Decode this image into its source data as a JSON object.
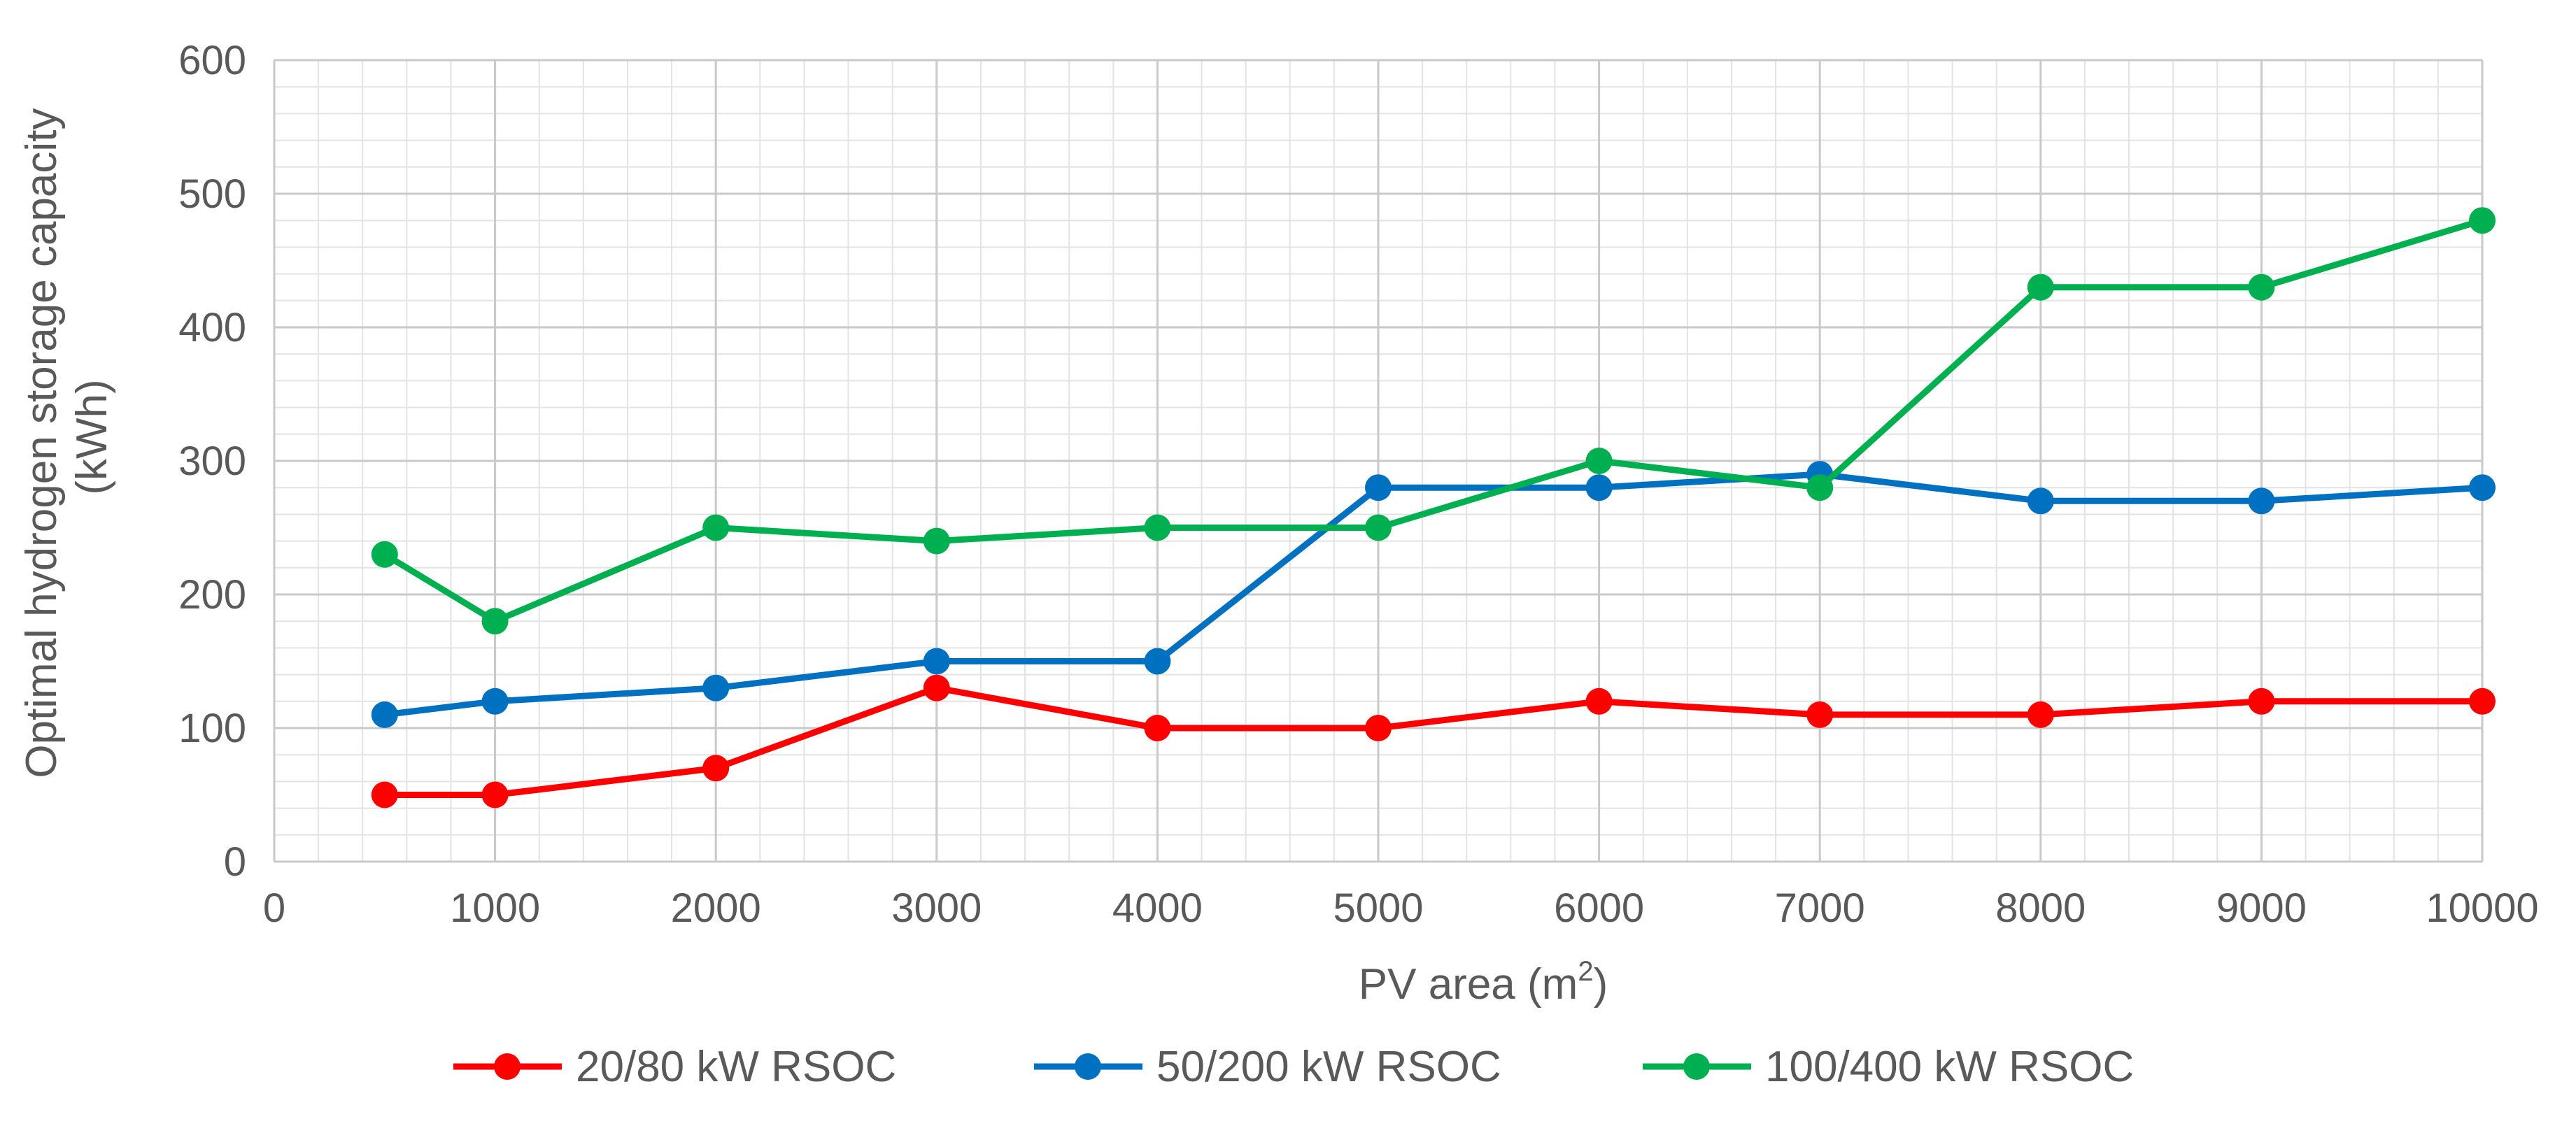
{
  "chart_data": {
    "type": "line",
    "title": "",
    "xlabel": "PV area (m",
    "xlabel_sup": "2",
    "xlabel_suffix": ")",
    "ylabel_line1": "Optimal hydrogen storage capacity",
    "ylabel_line2": "(kWh)",
    "xlim": [
      0,
      10000
    ],
    "ylim": [
      0,
      600
    ],
    "xticks": [
      0,
      1000,
      2000,
      3000,
      4000,
      5000,
      6000,
      7000,
      8000,
      9000,
      10000
    ],
    "yticks": [
      0,
      100,
      200,
      300,
      400,
      500,
      600
    ],
    "grid": true,
    "legend_position": "bottom",
    "x": [
      500,
      1000,
      2000,
      3000,
      4000,
      5000,
      6000,
      7000,
      8000,
      9000,
      10000
    ],
    "series": [
      {
        "name": "20/80 kW RSOC",
        "color": "#ff0000",
        "values": [
          50,
          50,
          70,
          130,
          100,
          100,
          120,
          110,
          110,
          120,
          120
        ]
      },
      {
        "name": "50/200 kW RSOC",
        "color": "#0070c0",
        "values": [
          110,
          120,
          130,
          150,
          150,
          280,
          280,
          290,
          270,
          270,
          280
        ]
      },
      {
        "name": "100/400 kW RSOC",
        "color": "#00b050",
        "values": [
          230,
          180,
          250,
          240,
          250,
          250,
          300,
          280,
          430,
          430,
          480
        ]
      }
    ]
  }
}
